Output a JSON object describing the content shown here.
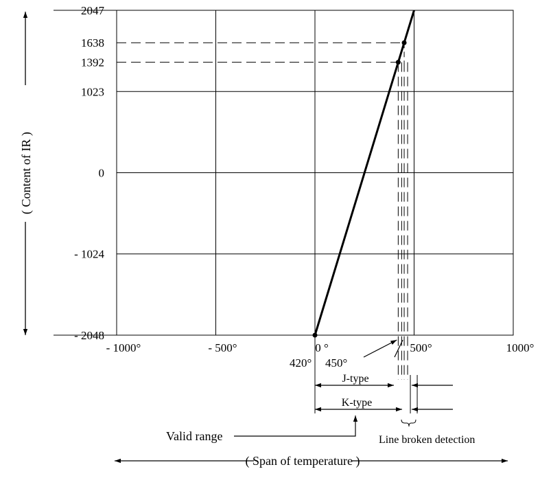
{
  "chart_data": {
    "type": "line",
    "title": "",
    "xlabel": "( Span of temperature )",
    "ylabel": "( Content of IR )",
    "xlim": [
      -1000,
      1000
    ],
    "ylim": [
      -2048,
      2047
    ],
    "grid": true,
    "x_ticks": [
      {
        "value": -1000,
        "label": "- 1000°"
      },
      {
        "value": -500,
        "label": "- 500°"
      },
      {
        "value": 0,
        "label": "0 °"
      },
      {
        "value": 500,
        "label": "500°"
      },
      {
        "value": 1000,
        "label": "1000°"
      }
    ],
    "y_ticks": [
      {
        "value": 2047,
        "label": "2047"
      },
      {
        "value": 1638,
        "label": "1638"
      },
      {
        "value": 1392,
        "label": "1392"
      },
      {
        "value": 1023,
        "label": "1023"
      },
      {
        "value": 0,
        "label": "0"
      },
      {
        "value": -1024,
        "label": "- 1024"
      },
      {
        "value": -2048,
        "label": "- 2048"
      }
    ],
    "series": [
      {
        "x": [
          0,
          420,
          450,
          500
        ],
        "y": [
          -2048,
          1392,
          1638,
          2047
        ]
      }
    ],
    "markers": [
      {
        "x": 0,
        "y": -2048
      },
      {
        "x": 420,
        "y": 1392
      },
      {
        "x": 450,
        "y": 1638
      }
    ],
    "annotations": {
      "j_type_end": {
        "value": 420,
        "label": "420°"
      },
      "k_type_end": {
        "value": 450,
        "label": "450°"
      },
      "j_type": "J-type",
      "k_type": "K-type",
      "valid_range": "Valid range",
      "line_broken": "Line broken detection"
    }
  }
}
